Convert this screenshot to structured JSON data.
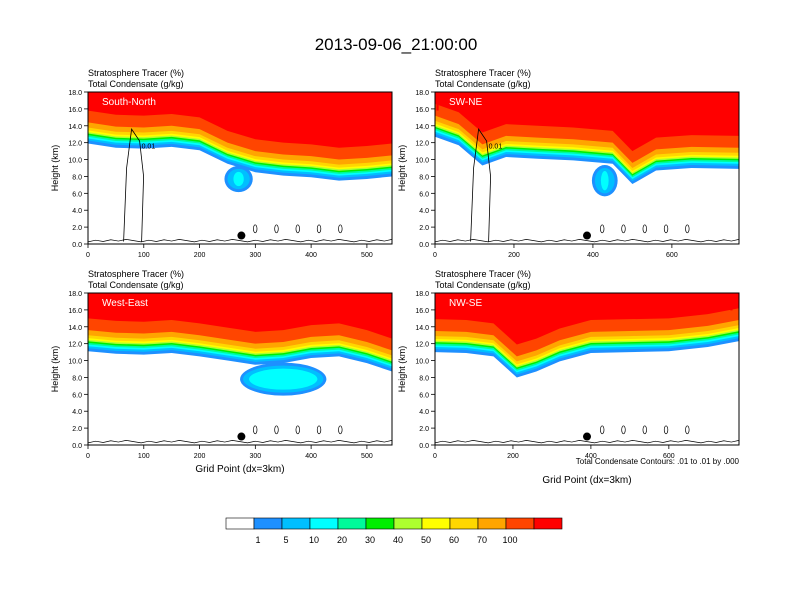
{
  "figure": {
    "title": "2013-09-06_21:00:00",
    "footnote": "Total Condensate Contours: .01 to .01 by .000"
  },
  "colorbar": {
    "levels": [
      "1",
      "5",
      "10",
      "20",
      "30",
      "40",
      "50",
      "60",
      "70",
      "100"
    ],
    "colors": [
      "#ffffff",
      "#1e90ff",
      "#00bfff",
      "#00ffff",
      "#00fa9a",
      "#00ee00",
      "#adff2f",
      "#ffff00",
      "#ffd700",
      "#ffa500",
      "#ff4500",
      "#ff0000"
    ]
  },
  "chart_data": [
    {
      "type": "heatmap",
      "panel_label": "South-North",
      "left_title_1": "Stratosphere Tracer   (%)",
      "left_title_2": "Total Condensate   (g/kg)",
      "xlabel": "",
      "ylabel": "Height (km)",
      "xlim": [
        0,
        545
      ],
      "ylim": [
        0,
        18
      ],
      "xticks": [
        "0",
        "100",
        "200",
        "300",
        "400",
        "500"
      ],
      "xtick_values": [
        0,
        100,
        200,
        300,
        400,
        500
      ],
      "yticks": [
        "0.0",
        "2.0",
        "4.0",
        "6.0",
        "8.0",
        "10.0",
        "12.0",
        "14.0",
        "16.0",
        "18.0"
      ],
      "tracer_base_km": [
        [
          0,
          13.2
        ],
        [
          50,
          12.7
        ],
        [
          100,
          12.6
        ],
        [
          150,
          12.8
        ],
        [
          200,
          12.4
        ],
        [
          250,
          10.8
        ],
        [
          300,
          9.8
        ],
        [
          350,
          9.4
        ],
        [
          400,
          9.2
        ],
        [
          450,
          8.8
        ],
        [
          500,
          9.0
        ],
        [
          545,
          9.3
        ]
      ],
      "plume": {
        "x": 270,
        "y": 7.7,
        "rx": 20,
        "ry": 1.2
      },
      "marker": {
        "x": 275,
        "y": 1.0
      },
      "contour_label": "0.01"
    },
    {
      "type": "heatmap",
      "panel_label": "SW-NE",
      "left_title_1": "Stratosphere Tracer   (%)",
      "left_title_2": "Total Condensate   (g/kg)",
      "xlabel": "",
      "ylabel": "Height (km)",
      "xlim": [
        0,
        770
      ],
      "ylim": [
        0,
        18
      ],
      "xticks": [
        "0",
        "200",
        "400",
        "600"
      ],
      "xtick_values": [
        0,
        200,
        400,
        600
      ],
      "yticks": [
        "0.0",
        "2.0",
        "4.0",
        "6.0",
        "8.0",
        "10.0",
        "12.0",
        "14.0",
        "16.0",
        "18.0"
      ],
      "tracer_base_km": [
        [
          0,
          14.0
        ],
        [
          60,
          13.0
        ],
        [
          120,
          10.6
        ],
        [
          180,
          11.6
        ],
        [
          260,
          11.4
        ],
        [
          350,
          11.2
        ],
        [
          450,
          10.8
        ],
        [
          500,
          8.4
        ],
        [
          560,
          10.0
        ],
        [
          650,
          10.3
        ],
        [
          770,
          10.2
        ]
      ],
      "plume": {
        "x": 430,
        "y": 7.5,
        "rx": 25,
        "ry": 1.5
      },
      "marker": {
        "x": 385,
        "y": 1.0
      },
      "contour_label": "0.01"
    },
    {
      "type": "heatmap",
      "panel_label": "West-East",
      "left_title_1": "Stratosphere Tracer   (%)",
      "left_title_2": "Total Condensate   (g/kg)",
      "xlabel": "Grid Point (dx=3km)",
      "ylabel": "Height (km)",
      "xlim": [
        0,
        545
      ],
      "ylim": [
        0,
        18
      ],
      "xticks": [
        "0",
        "100",
        "200",
        "300",
        "400",
        "500"
      ],
      "xtick_values": [
        0,
        100,
        200,
        300,
        400,
        500
      ],
      "yticks": [
        "0.0",
        "2.0",
        "4.0",
        "6.0",
        "8.0",
        "10.0",
        "12.0",
        "14.0",
        "16.0",
        "18.0"
      ],
      "tracer_base_km": [
        [
          0,
          12.4
        ],
        [
          50,
          12.1
        ],
        [
          100,
          12.0
        ],
        [
          150,
          12.2
        ],
        [
          200,
          11.8
        ],
        [
          250,
          11.3
        ],
        [
          300,
          10.8
        ],
        [
          350,
          11.0
        ],
        [
          400,
          11.6
        ],
        [
          450,
          11.8
        ],
        [
          500,
          11.0
        ],
        [
          545,
          10.0
        ]
      ],
      "plume": {
        "x": 350,
        "y": 7.8,
        "rx": 72,
        "ry": 1.6
      },
      "marker": {
        "x": 275,
        "y": 1.0
      },
      "contour_label": ""
    },
    {
      "type": "heatmap",
      "panel_label": "NW-SE",
      "left_title_1": "Stratosphere Tracer   (%)",
      "left_title_2": "Total Condensate   (g/kg)",
      "xlabel": "Grid Point (dx=3km)",
      "ylabel": "Height (km)",
      "xlim": [
        0,
        780
      ],
      "ylim": [
        0,
        18
      ],
      "xticks": [
        "0",
        "200",
        "400",
        "600"
      ],
      "xtick_values": [
        0,
        200,
        400,
        600
      ],
      "yticks": [
        "0.0",
        "2.0",
        "4.0",
        "6.0",
        "8.0",
        "10.0",
        "12.0",
        "14.0",
        "16.0",
        "18.0"
      ],
      "tracer_base_km": [
        [
          0,
          12.3
        ],
        [
          80,
          12.2
        ],
        [
          150,
          11.8
        ],
        [
          210,
          9.3
        ],
        [
          260,
          10.0
        ],
        [
          320,
          11.2
        ],
        [
          400,
          12.2
        ],
        [
          500,
          12.3
        ],
        [
          600,
          12.4
        ],
        [
          700,
          12.9
        ],
        [
          780,
          13.6
        ]
      ],
      "plume": null,
      "marker": {
        "x": 390,
        "y": 1.0
      },
      "contour_label": ""
    }
  ]
}
